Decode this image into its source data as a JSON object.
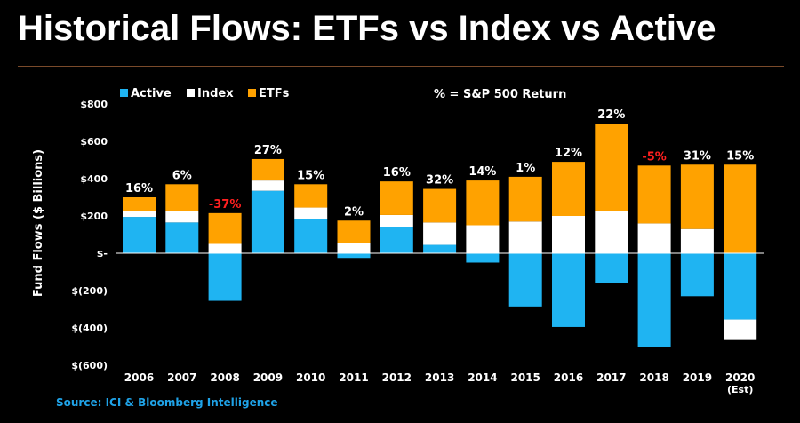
{
  "title": "Historical Flows: ETFs vs Index vs Active",
  "source": "Source: ICI & Bloomberg Intelligence",
  "colors": {
    "active": "#1fb4f2",
    "index": "#ffffff",
    "etfs": "#ffa200",
    "negative_return": "#ff2020",
    "text": "#ffffff"
  },
  "chart_data": {
    "type": "bar",
    "stacked": true,
    "categories": [
      "2006",
      "2007",
      "2008",
      "2009",
      "2010",
      "2011",
      "2012",
      "2013",
      "2014",
      "2015",
      "2016",
      "2017",
      "2018",
      "2019",
      "2020"
    ],
    "category_sublabels": [
      "",
      "",
      "",
      "",
      "",
      "",
      "",
      "",
      "",
      "",
      "",
      "",
      "",
      "",
      "(Est)"
    ],
    "series": [
      {
        "name": "Active",
        "values": [
          195,
          165,
          -255,
          335,
          185,
          -25,
          140,
          45,
          -50,
          -285,
          -395,
          -160,
          -500,
          -230,
          -355
        ]
      },
      {
        "name": "Index",
        "values": [
          30,
          60,
          50,
          55,
          60,
          55,
          65,
          120,
          150,
          170,
          200,
          225,
          160,
          130,
          -110
        ]
      },
      {
        "name": "ETFs",
        "values": [
          75,
          145,
          165,
          115,
          125,
          120,
          180,
          180,
          240,
          240,
          290,
          470,
          310,
          345,
          475
        ]
      }
    ],
    "returns": [
      "16%",
      "6%",
      "-37%",
      "27%",
      "15%",
      "2%",
      "16%",
      "32%",
      "14%",
      "1%",
      "12%",
      "22%",
      "-5%",
      "31%",
      "15%"
    ],
    "returns_note": "% = S&P 500 Return",
    "ylabel": "Fund Flows ($ Billions)",
    "ylim": [
      -600,
      800
    ],
    "yticks": [
      800,
      600,
      400,
      200,
      0,
      -200,
      -400,
      -600
    ],
    "ytick_labels": [
      "$800",
      "$600",
      "$400",
      "$200",
      "$-",
      "$(200)",
      "$(400)",
      "$(600)"
    ],
    "legend_position": "top-left",
    "grid": false
  }
}
